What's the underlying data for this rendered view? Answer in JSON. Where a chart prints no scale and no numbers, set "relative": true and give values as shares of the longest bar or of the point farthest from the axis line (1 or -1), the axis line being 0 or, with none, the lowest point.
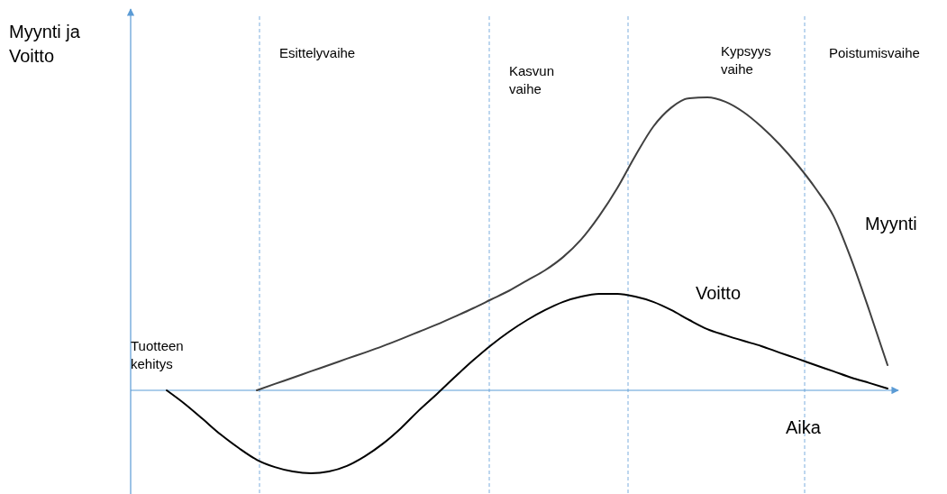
{
  "chart_data": {
    "type": "line",
    "relative": true,
    "ylabel": "Myynti ja Voitto",
    "xlabel": "Aika",
    "categories": [
      null,
      null,
      null,
      null,
      null,
      null,
      null,
      null,
      null,
      null,
      null,
      null,
      null,
      null,
      null,
      null,
      null,
      null,
      null,
      null,
      null,
      null,
      null,
      null,
      null,
      null,
      null,
      null,
      null,
      null,
      null,
      null,
      null,
      null,
      null,
      null,
      null,
      null,
      null,
      null,
      null,
      null,
      null
    ],
    "series": [
      {
        "name": "Myynti",
        "color": "#404040",
        "values": [
          null,
          null,
          null,
          null,
          null,
          null,
          null,
          0,
          0.022,
          0.043,
          0.065,
          0.086,
          0.108,
          0.129,
          0.151,
          0.175,
          0.2,
          0.225,
          0.252,
          0.28,
          0.31,
          0.34,
          0.375,
          0.41,
          0.455,
          0.515,
          0.595,
          0.69,
          0.8,
          0.9,
          0.965,
          0.997,
          1,
          0.985,
          0.95,
          0.9,
          0.84,
          0.77,
          0.69,
          0.595,
          0.445,
          0.27,
          0.086
        ]
      },
      {
        "name": "Voitto",
        "color": "#000000",
        "values": [
          null,
          null,
          0,
          -0.046,
          -0.098,
          -0.151,
          -0.197,
          -0.237,
          -0.262,
          -0.277,
          -0.283,
          -0.277,
          -0.258,
          -0.225,
          -0.182,
          -0.129,
          -0.068,
          -0.012,
          0.046,
          0.102,
          0.154,
          0.2,
          0.24,
          0.274,
          0.302,
          0.32,
          0.329,
          0.329,
          0.32,
          0.302,
          0.274,
          0.24,
          0.209,
          0.188,
          0.169,
          0.151,
          0.129,
          0.108,
          0.086,
          0.065,
          0.043,
          0.025,
          0.006
        ]
      }
    ],
    "annotations": [
      "Tuotteen kehitys",
      "Esittelyvaihe",
      "Kasvun vaihe",
      "Kypsyys vaihe",
      "Poistumisvaihe"
    ],
    "ref_lines": [
      {
        "axis": "y",
        "value": 0,
        "color": "#5b9bd5"
      }
    ],
    "line_style": "solid",
    "marker": "none"
  }
}
